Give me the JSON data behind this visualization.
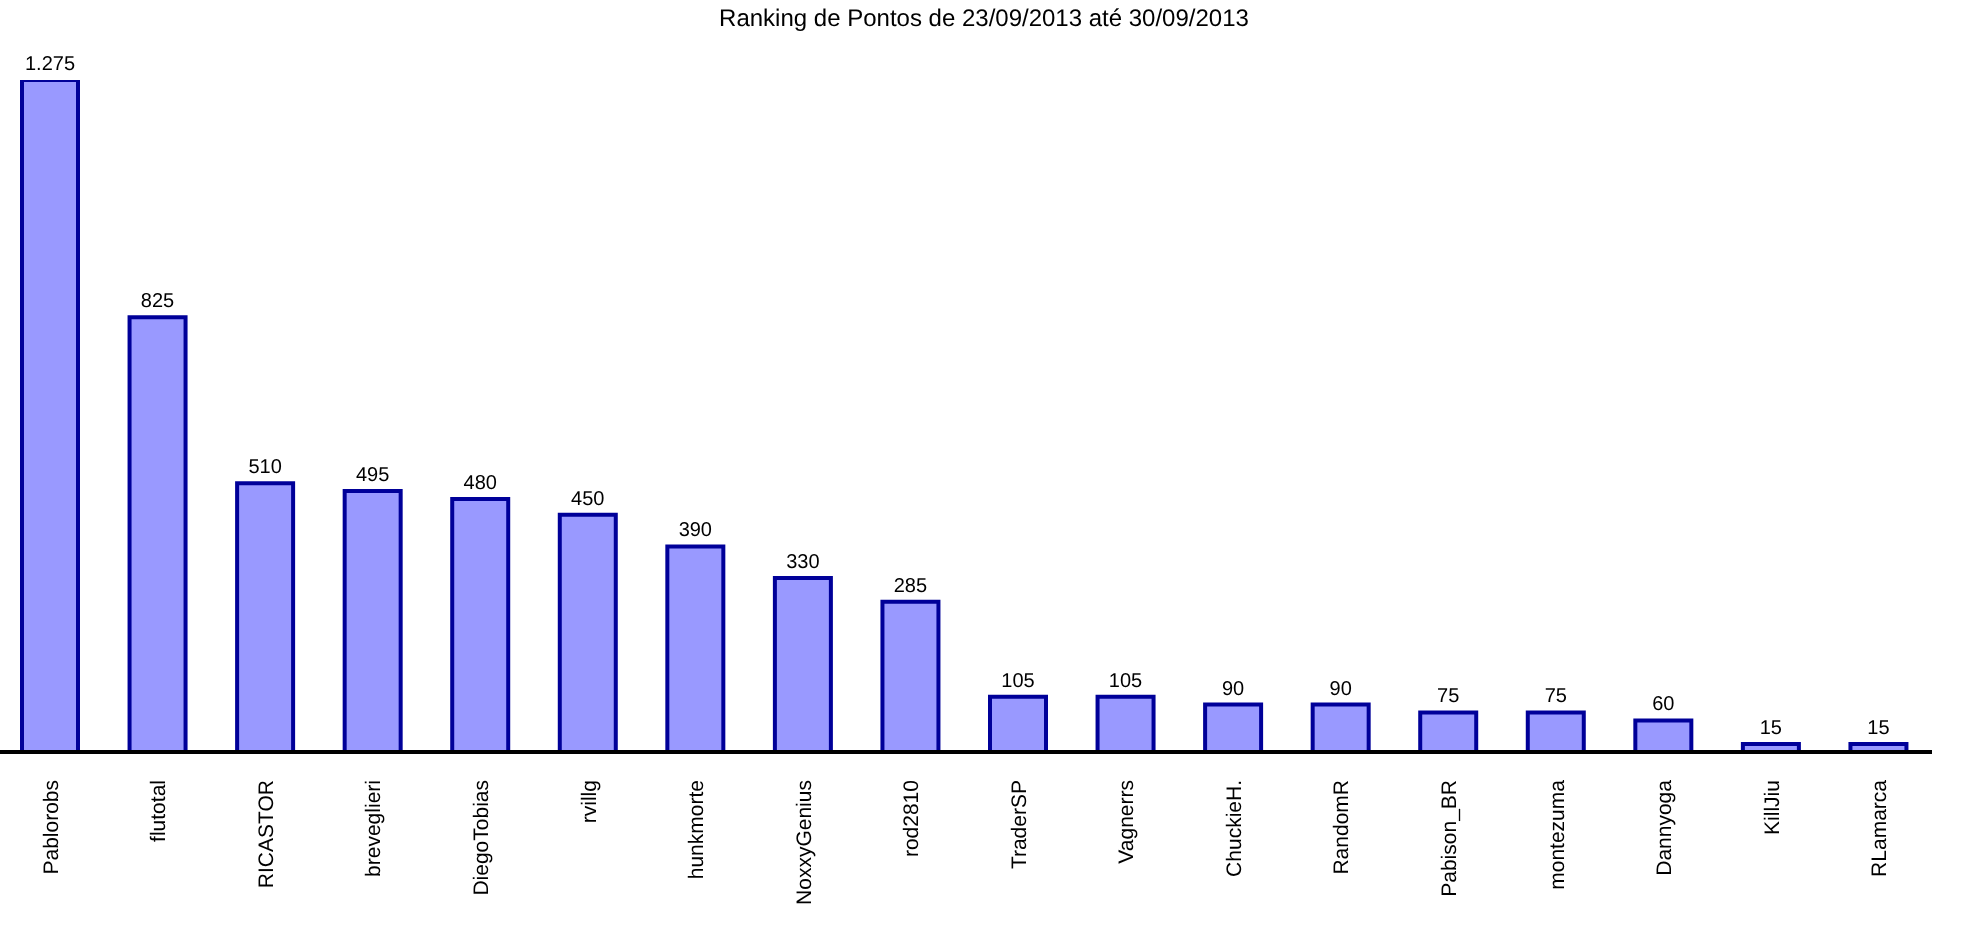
{
  "chart_data": {
    "type": "bar",
    "title": "Ranking de Pontos de 23/09/2013 até 30/09/2013",
    "categories": [
      "Pablorobs",
      "flutotal",
      "RICASTOR",
      "breveglieri",
      "DiegoTobias",
      "rvillg",
      "hunkmorte",
      "NoxxyGenius",
      "rod2810",
      "TraderSP",
      "Vagnerrs",
      "ChuckieH.",
      "RandomR",
      "Pabison_BR",
      "montezuma",
      "Dannyoga",
      "KillJiu",
      "RLamarca"
    ],
    "values": [
      1275,
      825,
      510,
      495,
      480,
      450,
      390,
      330,
      285,
      105,
      105,
      90,
      90,
      75,
      75,
      60,
      15,
      15
    ],
    "value_labels": [
      "1.275",
      "825",
      "510",
      "495",
      "480",
      "450",
      "390",
      "330",
      "285",
      "105",
      "105",
      "90",
      "90",
      "75",
      "75",
      "60",
      "15",
      "15"
    ],
    "color": "#9999ff",
    "tick_labels": "x"
  }
}
